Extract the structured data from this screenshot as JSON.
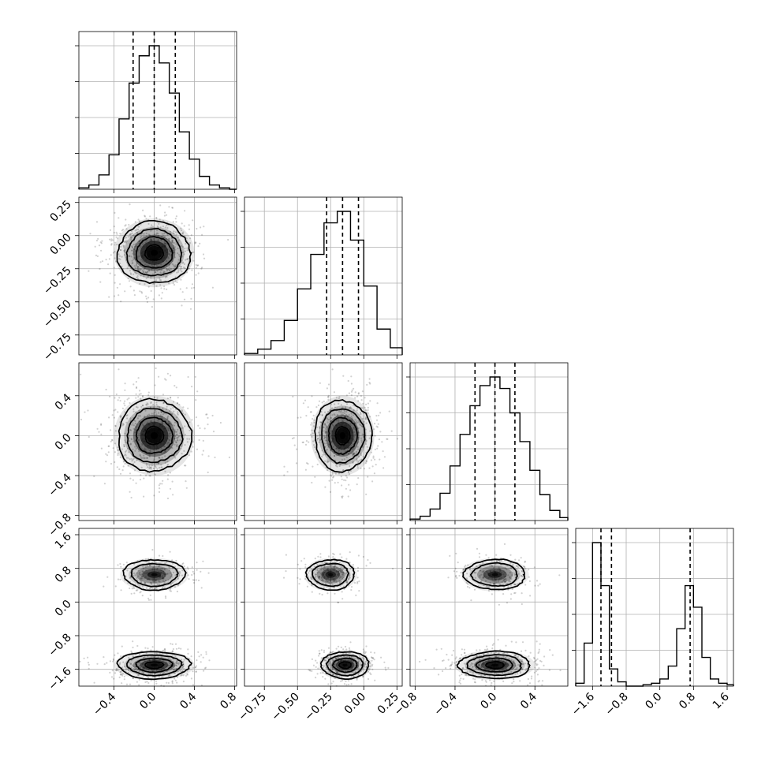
{
  "chart_data": {
    "type": "corner",
    "n_params": 4,
    "grid": true,
    "quantiles": [
      0.16,
      0.5,
      0.84
    ],
    "params": [
      {
        "ticks": [
          -0.4,
          0.0,
          0.4,
          0.8
        ],
        "tick_labels": [
          "−0.4",
          "0.0",
          "0.4",
          "0.8"
        ],
        "range": [
          -0.75,
          0.82
        ]
      },
      {
        "ticks": [
          -0.75,
          -0.5,
          -0.25,
          0.0,
          0.25
        ],
        "tick_labels": [
          "−0.75",
          "−0.50",
          "−0.25",
          "0.00",
          "0.25"
        ],
        "range": [
          -0.9,
          0.29
        ]
      },
      {
        "ticks": [
          -0.8,
          -0.4,
          0.0,
          0.4
        ],
        "tick_labels": [
          "−0.8",
          "−0.4",
          "0.0",
          "0.4"
        ],
        "range": [
          -0.85,
          0.73
        ]
      },
      {
        "ticks": [
          -1.6,
          -0.8,
          0.0,
          0.8,
          1.6
        ],
        "tick_labels": [
          "−1.6",
          "−0.8",
          "0.0",
          "0.8",
          "1.6"
        ],
        "range": [
          -2.0,
          1.75
        ]
      }
    ],
    "marginals": [
      {
        "bin_edges": [
          -0.75,
          -0.65,
          -0.55,
          -0.45,
          -0.35,
          -0.25,
          -0.15,
          -0.05,
          0.05,
          0.15,
          0.25,
          0.35,
          0.45,
          0.55,
          0.65,
          0.75,
          0.82
        ],
        "counts": [
          1,
          3,
          10,
          24,
          49,
          74,
          93,
          100,
          88,
          67,
          40,
          21,
          9,
          3,
          1,
          0
        ],
        "quantile_values": [
          -0.21,
          0.0,
          0.21
        ]
      },
      {
        "bin_edges": [
          -0.9,
          -0.8,
          -0.7,
          -0.6,
          -0.5,
          -0.4,
          -0.3,
          -0.2,
          -0.1,
          0.0,
          0.1,
          0.2,
          0.29
        ],
        "counts": [
          1,
          4,
          10,
          24,
          46,
          70,
          92,
          100,
          80,
          48,
          18,
          5
        ],
        "quantile_values": [
          -0.28,
          -0.16,
          -0.04
        ]
      },
      {
        "bin_edges": [
          -0.85,
          -0.75,
          -0.65,
          -0.55,
          -0.45,
          -0.35,
          -0.25,
          -0.15,
          -0.05,
          0.05,
          0.15,
          0.25,
          0.35,
          0.45,
          0.55,
          0.65,
          0.73
        ],
        "counts": [
          1,
          3,
          8,
          19,
          38,
          60,
          80,
          94,
          100,
          92,
          75,
          55,
          35,
          18,
          7,
          2
        ],
        "quantile_values": [
          -0.2,
          0.0,
          0.2
        ]
      },
      {
        "bin_edges": [
          -2.0,
          -1.8,
          -1.6,
          -1.4,
          -1.2,
          -1.0,
          -0.8,
          -0.6,
          -0.4,
          -0.2,
          0.0,
          0.2,
          0.4,
          0.6,
          0.8,
          1.0,
          1.2,
          1.4,
          1.6,
          1.75
        ],
        "counts": [
          2,
          30,
          100,
          70,
          12,
          3,
          0,
          0,
          1,
          2,
          5,
          14,
          40,
          70,
          55,
          20,
          5,
          2,
          1
        ],
        "quantile_values": [
          -1.4,
          -1.15,
          0.72
        ]
      }
    ],
    "joint": [
      {
        "x_param": 0,
        "y_param": 1,
        "components": [
          {
            "mx": 0.0,
            "my": -0.13,
            "sx": 0.2,
            "sy": 0.13,
            "w": 1.0
          }
        ]
      },
      {
        "x_param": 0,
        "y_param": 2,
        "components": [
          {
            "mx": 0.0,
            "my": 0.0,
            "sx": 0.2,
            "sy": 0.2,
            "w": 1.0
          }
        ]
      },
      {
        "x_param": 1,
        "y_param": 2,
        "components": [
          {
            "mx": -0.16,
            "my": 0.0,
            "sx": 0.12,
            "sy": 0.2,
            "w": 1.0
          }
        ]
      },
      {
        "x_param": 0,
        "y_param": 3,
        "components": [
          {
            "mx": 0.0,
            "my": -1.5,
            "sx": 0.2,
            "sy": 0.18,
            "w": 0.6
          },
          {
            "mx": 0.0,
            "my": 0.65,
            "sx": 0.17,
            "sy": 0.2,
            "w": 0.4
          }
        ]
      },
      {
        "x_param": 1,
        "y_param": 3,
        "components": [
          {
            "mx": -0.14,
            "my": -1.5,
            "sx": 0.1,
            "sy": 0.18,
            "w": 0.6
          },
          {
            "mx": -0.25,
            "my": 0.65,
            "sx": 0.1,
            "sy": 0.2,
            "w": 0.4
          }
        ]
      },
      {
        "x_param": 2,
        "y_param": 3,
        "components": [
          {
            "mx": 0.0,
            "my": -1.5,
            "sx": 0.2,
            "sy": 0.18,
            "w": 0.6
          },
          {
            "mx": 0.0,
            "my": 0.65,
            "sx": 0.17,
            "sy": 0.2,
            "w": 0.4
          }
        ]
      }
    ]
  }
}
